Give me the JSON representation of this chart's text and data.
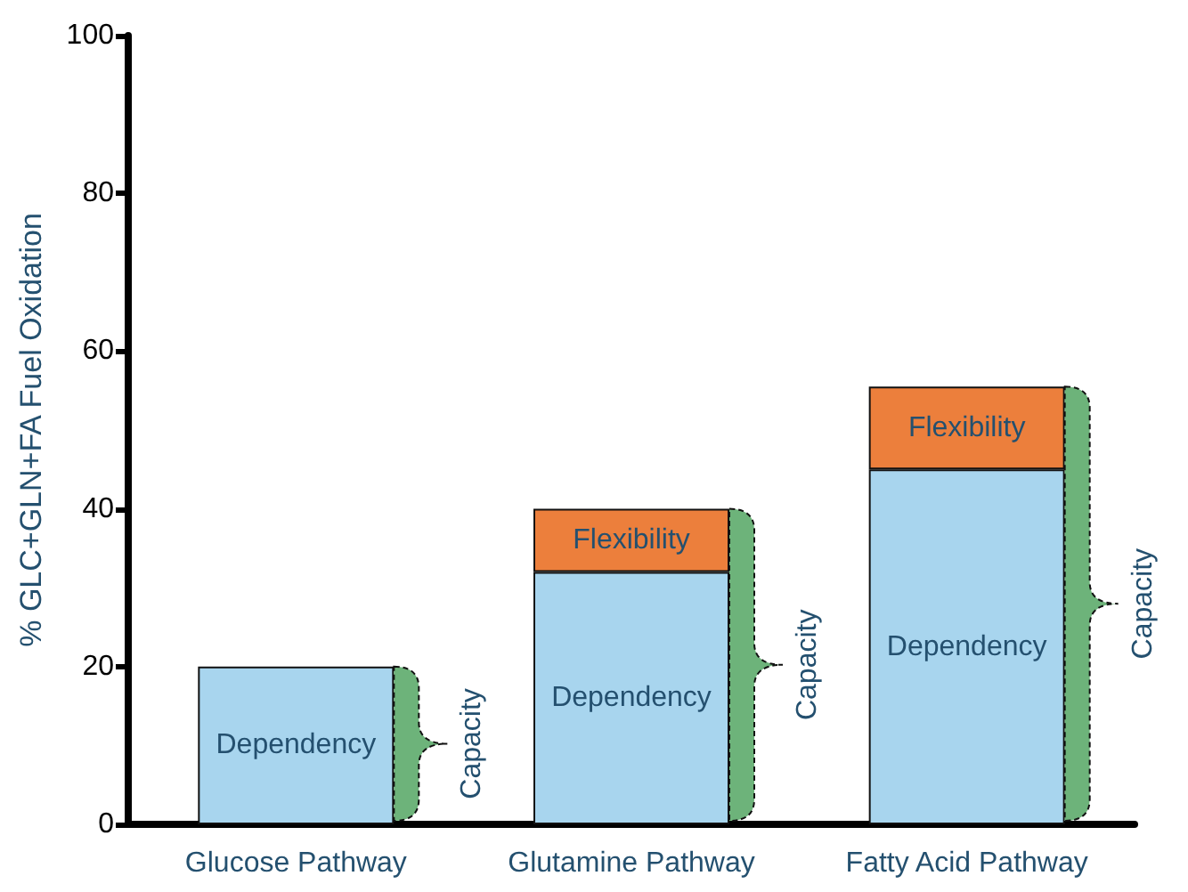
{
  "chart_data": {
    "type": "bar",
    "ylabel": "% GLC+GLN+FA Fuel Oxidation",
    "categories": [
      "Glucose Pathway",
      "Glutamine Pathway",
      "Fatty Acid Pathway"
    ],
    "series": [
      {
        "name": "Dependency",
        "color": "#a8d5ee",
        "values": [
          20,
          32,
          45
        ]
      },
      {
        "name": "Flexibility",
        "color": "#ec7f3c",
        "values": [
          null,
          8,
          10.5
        ]
      }
    ],
    "stacked": true,
    "ylim": [
      0,
      100
    ],
    "yticks": [
      0,
      20,
      40,
      60,
      80,
      100
    ],
    "grid": false,
    "legend": false,
    "annotations": [
      "Capacity",
      "Capacity",
      "Capacity"
    ]
  }
}
